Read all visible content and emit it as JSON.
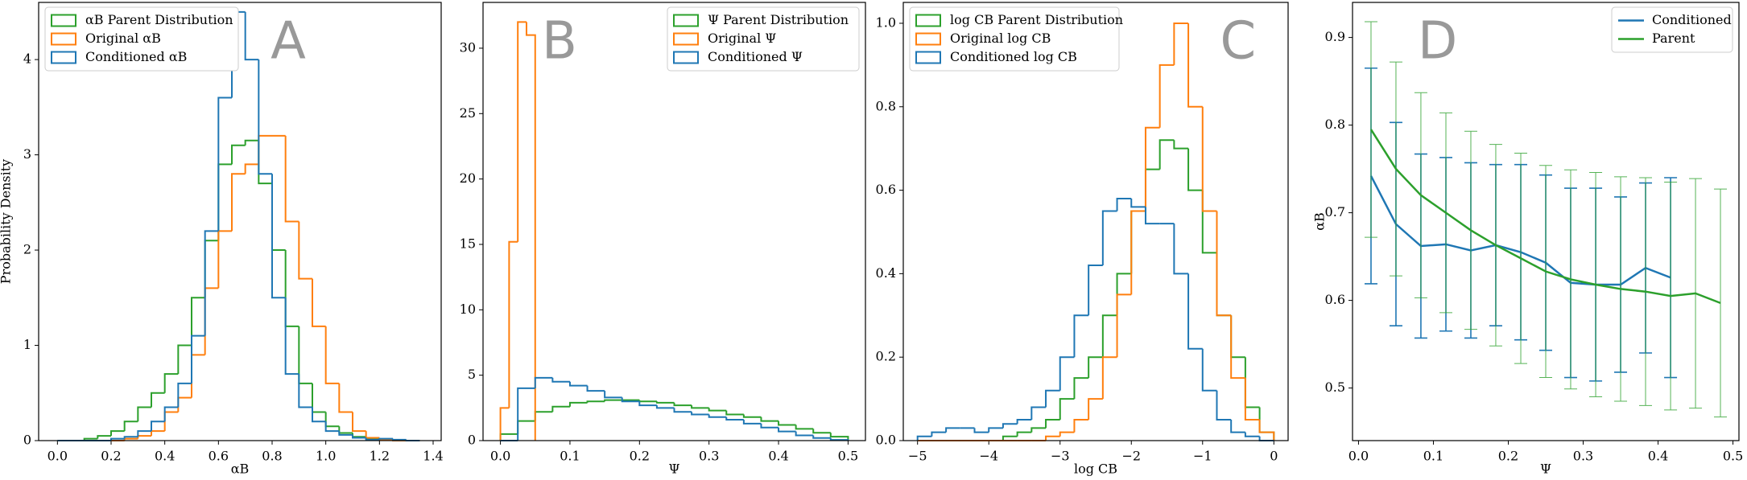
{
  "chart_data": [
    {
      "type": "histogram",
      "label": "A",
      "xlabel": "αB",
      "ylabel": "Probability Density",
      "legend": "upper left",
      "xlim": [
        -0.07,
        1.43
      ],
      "ylim": [
        0,
        4.6
      ],
      "xticks": [
        {
          "value": 0,
          "label": "0.0"
        },
        {
          "value": 0.2,
          "label": "0.2"
        },
        {
          "value": 0.4,
          "label": "0.4"
        },
        {
          "value": 0.6,
          "label": "0.6"
        },
        {
          "value": 0.8,
          "label": "0.8"
        },
        {
          "value": 1.0,
          "label": "1.0"
        },
        {
          "value": 1.2,
          "label": "1.2"
        },
        {
          "value": 1.4,
          "label": "1.4"
        }
      ],
      "yticks": [
        0,
        1,
        2,
        3,
        4
      ],
      "series": [
        {
          "name": "αB Parent Distribution",
          "color": "#2ca02c",
          "bins": [
            0,
            0.05,
            0.1,
            0.15,
            0.2,
            0.25,
            0.3,
            0.35,
            0.4,
            0.45,
            0.5,
            0.55,
            0.6,
            0.65,
            0.7,
            0.75,
            0.8,
            0.85,
            0.9,
            0.95,
            1.0,
            1.05,
            1.1,
            1.15,
            1.2,
            1.25,
            1.3,
            1.35
          ],
          "values": [
            0,
            0,
            0.02,
            0.05,
            0.1,
            0.2,
            0.35,
            0.5,
            0.7,
            1.0,
            1.5,
            2.1,
            2.9,
            3.1,
            3.15,
            2.7,
            2.0,
            1.2,
            0.6,
            0.3,
            0.15,
            0.08,
            0.04,
            0.02,
            0.01,
            0,
            0
          ]
        },
        {
          "name": "Original αB",
          "color": "#ff7f0e",
          "bins": [
            0,
            0.05,
            0.1,
            0.15,
            0.2,
            0.25,
            0.3,
            0.35,
            0.4,
            0.45,
            0.5,
            0.55,
            0.6,
            0.65,
            0.7,
            0.75,
            0.8,
            0.85,
            0.9,
            0.95,
            1.0,
            1.05,
            1.1,
            1.15,
            1.2,
            1.25,
            1.3,
            1.35
          ],
          "values": [
            0,
            0,
            0,
            0,
            0,
            0.02,
            0.05,
            0.1,
            0.3,
            0.45,
            0.9,
            1.6,
            2.2,
            2.8,
            2.9,
            3.2,
            3.2,
            2.3,
            1.7,
            1.2,
            0.6,
            0.3,
            0.1,
            0.03,
            0.01,
            0,
            0
          ]
        },
        {
          "name": "Conditioned αB",
          "color": "#1f77b4",
          "bins": [
            0,
            0.05,
            0.1,
            0.15,
            0.2,
            0.25,
            0.3,
            0.35,
            0.4,
            0.45,
            0.5,
            0.55,
            0.6,
            0.65,
            0.7,
            0.75,
            0.8,
            0.85,
            0.9,
            0.95,
            1.0,
            1.05,
            1.1,
            1.15,
            1.2,
            1.25,
            1.3,
            1.35
          ],
          "values": [
            0,
            0,
            0,
            0,
            0.02,
            0.04,
            0.1,
            0.2,
            0.35,
            0.6,
            1.1,
            2.2,
            3.6,
            4.5,
            4.0,
            2.8,
            1.5,
            0.7,
            0.35,
            0.2,
            0.1,
            0.06,
            0.03,
            0.01,
            0.02,
            0.01,
            0
          ]
        }
      ]
    },
    {
      "type": "histogram",
      "label": "B",
      "xlabel": "Ψ",
      "legend": "upper right",
      "xlim": [
        -0.025,
        0.525
      ],
      "ylim": [
        0,
        33.5
      ],
      "xticks": [
        {
          "value": 0,
          "label": "0.0"
        },
        0.1,
        0.2,
        0.3,
        0.4,
        0.5
      ],
      "yticks": [
        0,
        5,
        10,
        15,
        20,
        25,
        30
      ],
      "series": [
        {
          "name": "Ψ Parent Distribution",
          "color": "#2ca02c",
          "bins": [
            0,
            0.025,
            0.05,
            0.075,
            0.1,
            0.125,
            0.15,
            0.175,
            0.2,
            0.225,
            0.25,
            0.275,
            0.3,
            0.325,
            0.35,
            0.375,
            0.4,
            0.425,
            0.45,
            0.475,
            0.5
          ],
          "values": [
            0.5,
            1.5,
            2.2,
            2.6,
            2.9,
            3.0,
            3.1,
            3.1,
            3.0,
            2.9,
            2.7,
            2.5,
            2.3,
            2.0,
            1.8,
            1.5,
            1.2,
            0.9,
            0.6,
            0.3
          ]
        },
        {
          "name": "Original Ψ",
          "color": "#ff7f0e",
          "bins": [
            0,
            0.0125,
            0.025,
            0.0375,
            0.05
          ],
          "values": [
            2.5,
            15.2,
            32,
            31
          ]
        },
        {
          "name": "Conditioned Ψ",
          "color": "#1f77b4",
          "bins": [
            0,
            0.025,
            0.05,
            0.075,
            0.1,
            0.125,
            0.15,
            0.175,
            0.2,
            0.225,
            0.25,
            0.275,
            0.3,
            0.325,
            0.35,
            0.375,
            0.4,
            0.425,
            0.45,
            0.475,
            0.5
          ],
          "values": [
            0,
            4.0,
            4.8,
            4.5,
            4.2,
            3.8,
            3.3,
            3.0,
            2.7,
            2.5,
            2.2,
            2.0,
            1.8,
            1.6,
            1.3,
            1.0,
            0.7,
            0.4,
            0.2,
            0.05
          ]
        }
      ]
    },
    {
      "type": "histogram",
      "label": "C",
      "xlabel": "log CB",
      "legend": "upper left",
      "xlim": [
        -5.2,
        0.2
      ],
      "ylim": [
        0,
        1.05
      ],
      "xticks": [
        {
          "value": -5,
          "label": "−5"
        },
        {
          "value": -4,
          "label": "−4"
        },
        {
          "value": -3,
          "label": "−3"
        },
        {
          "value": -2,
          "label": "−2"
        },
        {
          "value": -1,
          "label": "−1"
        },
        0
      ],
      "yticks": [
        {
          "value": 0,
          "label": "0.0"
        },
        0.2,
        0.4,
        0.6,
        0.8,
        {
          "value": 1.0,
          "label": "1.0"
        }
      ],
      "series": [
        {
          "name": "log CB Parent Distribution",
          "color": "#2ca02c",
          "bins": [
            -5,
            -4.8,
            -4.6,
            -4.4,
            -4.2,
            -4,
            -3.8,
            -3.6,
            -3.4,
            -3.2,
            -3,
            -2.8,
            -2.6,
            -2.4,
            -2.2,
            -2,
            -1.8,
            -1.6,
            -1.4,
            -1.2,
            -1,
            -0.8,
            -0.6,
            -0.4,
            -0.2,
            0
          ],
          "values": [
            0,
            0,
            0,
            0,
            0,
            0,
            0.01,
            0.02,
            0.03,
            0.05,
            0.1,
            0.15,
            0.2,
            0.3,
            0.4,
            0.55,
            0.65,
            0.72,
            0.7,
            0.6,
            0.45,
            0.3,
            0.2,
            0.08,
            0.02
          ]
        },
        {
          "name": "Original log CB",
          "color": "#ff7f0e",
          "bins": [
            -5,
            -4.8,
            -4.6,
            -4.4,
            -4.2,
            -4,
            -3.8,
            -3.6,
            -3.4,
            -3.2,
            -3,
            -2.8,
            -2.6,
            -2.4,
            -2.2,
            -2,
            -1.8,
            -1.6,
            -1.4,
            -1.2,
            -1,
            -0.8,
            -0.6,
            -0.4,
            -0.2,
            0
          ],
          "values": [
            0,
            0,
            0,
            0,
            0,
            0,
            0,
            0,
            0,
            0.01,
            0.02,
            0.05,
            0.1,
            0.2,
            0.35,
            0.55,
            0.75,
            0.9,
            1.0,
            0.8,
            0.55,
            0.3,
            0.15,
            0.05,
            0.02
          ]
        },
        {
          "name": "Conditioned log CB",
          "color": "#1f77b4",
          "bins": [
            -5,
            -4.8,
            -4.6,
            -4.4,
            -4.2,
            -4,
            -3.8,
            -3.6,
            -3.4,
            -3.2,
            -3,
            -2.8,
            -2.6,
            -2.4,
            -2.2,
            -2,
            -1.8,
            -1.6,
            -1.4,
            -1.2,
            -1,
            -0.8,
            -0.6,
            -0.4,
            -0.2,
            0
          ],
          "values": [
            0.01,
            0.02,
            0.03,
            0.03,
            0.02,
            0.03,
            0.04,
            0.05,
            0.08,
            0.12,
            0.2,
            0.3,
            0.42,
            0.55,
            0.58,
            0.56,
            0.52,
            0.52,
            0.4,
            0.22,
            0.12,
            0.05,
            0.02,
            0.01,
            0
          ]
        }
      ]
    },
    {
      "type": "line",
      "label": "D",
      "xlabel": "Ψ",
      "ylabel": "αB",
      "legend": "upper right",
      "xlim": [
        -0.008,
        0.508
      ],
      "ylim": [
        0.44,
        0.94
      ],
      "xticks": [
        {
          "value": 0,
          "label": "0.0"
        },
        0.1,
        0.2,
        0.3,
        0.4,
        0.5
      ],
      "yticks": [
        0.5,
        0.6,
        0.7,
        0.8,
        0.9
      ],
      "series": [
        {
          "name": "Conditioned",
          "color": "#1f77b4",
          "x": [
            0.0167,
            0.05,
            0.0833,
            0.1167,
            0.15,
            0.1833,
            0.2167,
            0.25,
            0.2833,
            0.3167,
            0.35,
            0.3833,
            0.4167
          ],
          "values": [
            0.742,
            0.687,
            0.662,
            0.664,
            0.657,
            0.663,
            0.655,
            0.643,
            0.62,
            0.618,
            0.618,
            0.637,
            0.626
          ],
          "errors": [
            0.123,
            0.116,
            0.105,
            0.099,
            0.1,
            0.092,
            0.1,
            0.1,
            0.108,
            0.11,
            0.1,
            0.097,
            0.114
          ]
        },
        {
          "name": "Parent",
          "color": "#2ca02c",
          "x": [
            0.0167,
            0.05,
            0.0833,
            0.1167,
            0.15,
            0.1833,
            0.2167,
            0.25,
            0.2833,
            0.3167,
            0.35,
            0.3833,
            0.4167,
            0.45,
            0.4833
          ],
          "values": [
            0.795,
            0.75,
            0.72,
            0.7,
            0.68,
            0.663,
            0.648,
            0.633,
            0.624,
            0.618,
            0.613,
            0.61,
            0.605,
            0.608,
            0.597
          ],
          "errors": [
            0.123,
            0.122,
            0.117,
            0.114,
            0.113,
            0.115,
            0.12,
            0.121,
            0.125,
            0.128,
            0.128,
            0.13,
            0.13,
            0.131,
            0.13
          ]
        }
      ]
    }
  ]
}
